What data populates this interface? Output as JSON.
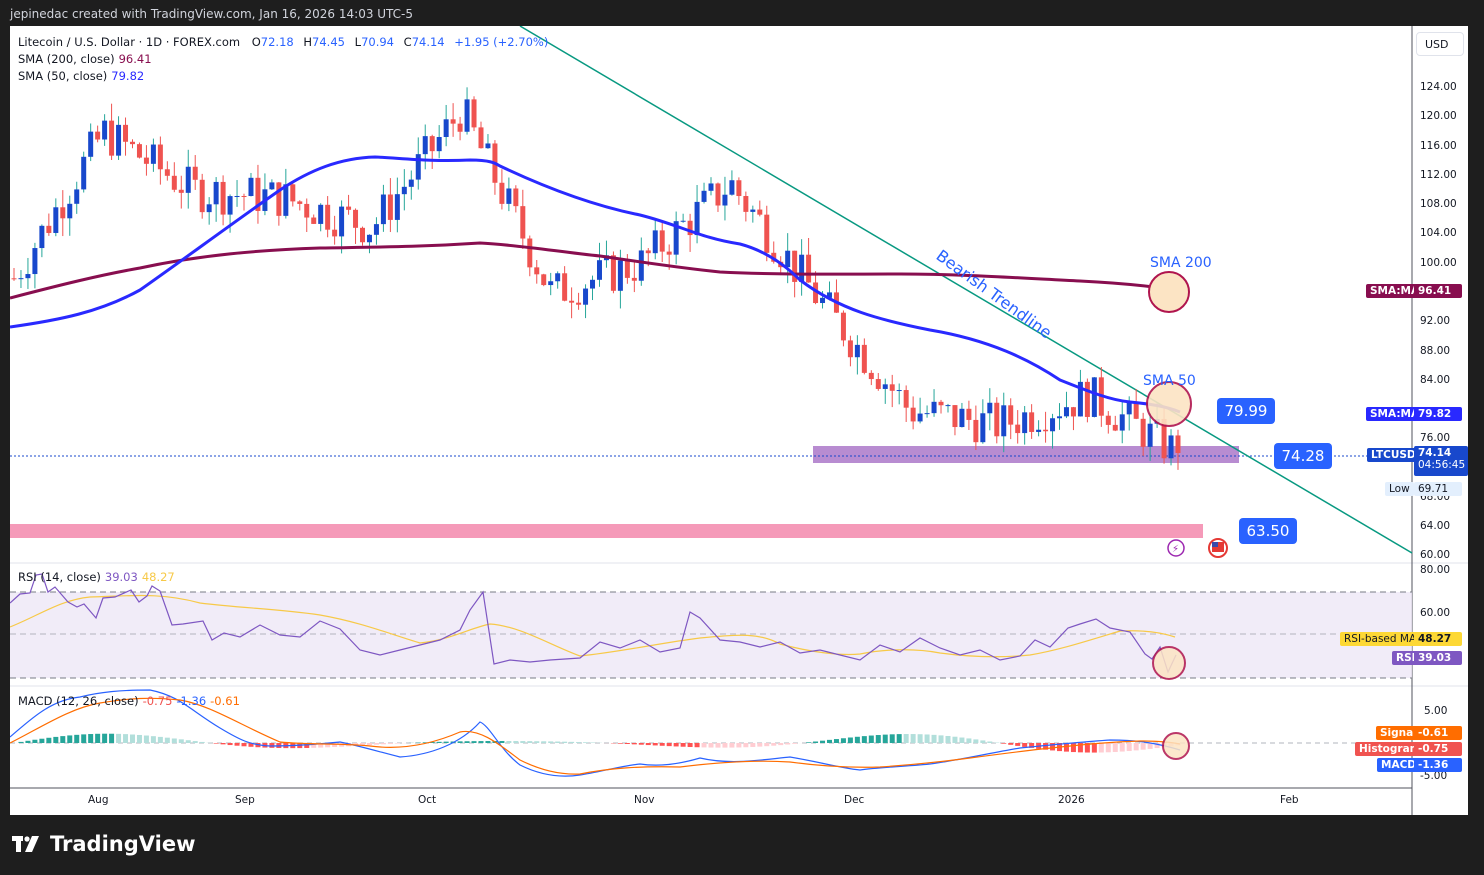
{
  "header": {
    "caption": "jepinedac created with TradingView.com, Jan 16, 2026 14:03 UTC-5"
  },
  "symbol": {
    "name": "Litecoin / U.S. Dollar · 1D · FOREX.com",
    "open_label": "O",
    "open": "72.18",
    "high_label": "H",
    "high": "74.45",
    "low_label": "L",
    "low": "70.94",
    "close_label": "C",
    "close": "74.14",
    "change": "+1.95 (+2.70%)"
  },
  "indicators": {
    "sma200": {
      "label": "SMA (200, close)",
      "value": "96.41",
      "color": "#880e4f"
    },
    "sma50": {
      "label": "SMA (50, close)",
      "value": "79.82",
      "color": "#2929ff"
    },
    "rsi": {
      "label": "RSI (14, close)",
      "value": "39.03",
      "ma_value": "48.27",
      "color": "#7e57c2",
      "ma_color": "#f7c948"
    },
    "macd": {
      "label": "MACD (12, 26, close)",
      "hist": "-0.75",
      "macd": "-1.36",
      "signal": "-0.61"
    }
  },
  "price_axis": {
    "currency_button": "USD",
    "ticks": [
      "124.00",
      "120.00",
      "116.00",
      "112.00",
      "108.00",
      "104.00",
      "100.00",
      "92.00",
      "88.00",
      "84.00",
      "76.00",
      "68.00",
      "64.00",
      "60.00"
    ],
    "tags": {
      "sma200": {
        "label": "SMA:MA",
        "value": "96.41",
        "color": "#880e4f"
      },
      "sma50": {
        "label": "SMA:MA",
        "value": "79.82",
        "color": "#2929ff"
      },
      "last": {
        "label": "LTCUSD",
        "value": "74.14",
        "countdown": "04:56:45",
        "color": "#1848cc"
      },
      "low": {
        "label": "Low",
        "value": "69.71"
      }
    }
  },
  "rsi_axis": {
    "ticks": [
      "80.00",
      "60.00"
    ],
    "tags": {
      "ma": {
        "label": "RSI-based MA",
        "value": "48.27",
        "color": "#fdd835"
      },
      "rsi": {
        "label": "RSI",
        "value": "39.03",
        "color": "#7e57c2"
      }
    }
  },
  "macd_axis": {
    "ticks": [
      "5.00",
      "-5.00"
    ],
    "tags": {
      "signal": {
        "label": "Signal",
        "value": "-0.61",
        "color": "#ff6d00"
      },
      "histogram": {
        "label": "Histogram",
        "value": "-0.75",
        "color": "#f05350"
      },
      "macd": {
        "label": "MACD",
        "value": "-1.36",
        "color": "#2962ff"
      }
    }
  },
  "time_axis": {
    "months": [
      "Aug",
      "Sep",
      "Oct",
      "Nov",
      "Dec",
      "2026",
      "Feb"
    ]
  },
  "annotations": {
    "trendline_label": "Bearish Trendline",
    "sma200_label": "SMA 200",
    "sma50_label": "SMA 50",
    "price_box_1": "79.99",
    "price_box_2": "74.28",
    "price_box_3": "63.50"
  },
  "footer": {
    "brand": "TradingView"
  },
  "chart_data": {
    "type": "candlestick",
    "title": "Litecoin / U.S. Dollar · 1D · FOREX.com",
    "x_ticks": [
      "Aug",
      "Sep",
      "Oct",
      "Nov",
      "Dec",
      "2026",
      "Feb"
    ],
    "ylabel": "USD",
    "ylim": [
      60,
      126
    ],
    "last_bar": {
      "open": 72.18,
      "high": 74.45,
      "low": 70.94,
      "close": 74.14,
      "change": 1.95,
      "change_pct": 2.7
    },
    "approx_close_path": [
      {
        "month": "Jul-end",
        "close": 98
      },
      {
        "month": "Aug-mid",
        "close": 118
      },
      {
        "month": "Aug-end",
        "close": 110
      },
      {
        "month": "Sep-mid",
        "close": 109
      },
      {
        "month": "Sep-end",
        "close": 105
      },
      {
        "month": "Oct-early",
        "close": 121
      },
      {
        "month": "Oct-10",
        "close": 96
      },
      {
        "month": "Oct-end",
        "close": 100
      },
      {
        "month": "Nov-early",
        "close": 111
      },
      {
        "month": "Nov-mid",
        "close": 95
      },
      {
        "month": "Nov-end",
        "close": 80
      },
      {
        "month": "Dec-mid",
        "close": 78
      },
      {
        "month": "Jan-early",
        "close": 82
      },
      {
        "month": "Jan-16",
        "close": 74.14
      }
    ],
    "series": [
      {
        "name": "SMA 200",
        "last": 96.41
      },
      {
        "name": "SMA 50",
        "last": 79.82
      },
      {
        "name": "RSI 14",
        "last": 39.03
      },
      {
        "name": "RSI-based MA",
        "last": 48.27
      },
      {
        "name": "MACD",
        "last": -1.36
      },
      {
        "name": "Signal",
        "last": -0.61
      },
      {
        "name": "Histogram",
        "last": -0.75
      }
    ],
    "levels": [
      {
        "name": "Support zone",
        "value": 74.28
      },
      {
        "name": "Resistance / SMA50 intersect",
        "value": 79.99
      },
      {
        "name": "Lower support",
        "value": 63.5
      }
    ],
    "annotations": [
      "Bearish Trendline",
      "SMA 200",
      "SMA 50"
    ]
  }
}
